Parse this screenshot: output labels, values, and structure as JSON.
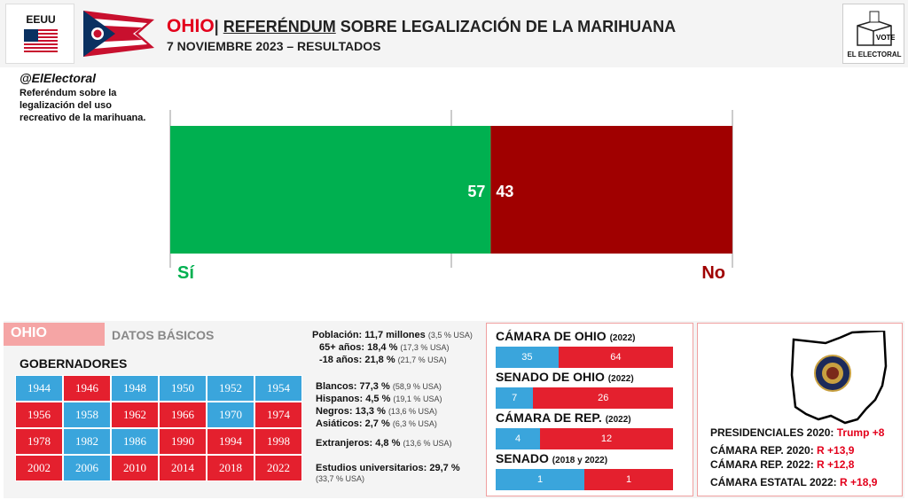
{
  "header": {
    "country_label": "EEUU",
    "title_state": "OHIO",
    "title_sep": "|",
    "title_ref": "REFERÉNDUM",
    "title_rest": "SOBRE LEGALIZACIÓN DE LA MARIHUANA",
    "subtitle": "7 NOVIEMBRE 2023 – RESULTADOS",
    "logo_label": "EL ELECTORAL",
    "ballot_text": "VOTE"
  },
  "intro": {
    "handle": "@ElElectoral",
    "description": "Referéndum sobre la legalización del uso recreativo de la marihuana."
  },
  "chart_data": {
    "type": "bar",
    "orientation": "horizontal-stacked",
    "categories": [
      "Sí",
      "No"
    ],
    "values": [
      57,
      43
    ],
    "labels": [
      "57",
      "43"
    ],
    "xlim": [
      0,
      100
    ],
    "colors": [
      "#00b050",
      "#a00000"
    ],
    "grid": true
  },
  "basics": {
    "tab_label": "OHIO",
    "section_label": "DATOS BÁSICOS",
    "governors_title": "GOBERNADORES",
    "governors": [
      {
        "year": "1944",
        "party": "D"
      },
      {
        "year": "1946",
        "party": "R"
      },
      {
        "year": "1948",
        "party": "D"
      },
      {
        "year": "1950",
        "party": "D"
      },
      {
        "year": "1952",
        "party": "D"
      },
      {
        "year": "1954",
        "party": "D"
      },
      {
        "year": "1956",
        "party": "R"
      },
      {
        "year": "1958",
        "party": "D"
      },
      {
        "year": "1962",
        "party": "R"
      },
      {
        "year": "1966",
        "party": "R"
      },
      {
        "year": "1970",
        "party": "D"
      },
      {
        "year": "1974",
        "party": "R"
      },
      {
        "year": "1978",
        "party": "R"
      },
      {
        "year": "1982",
        "party": "D"
      },
      {
        "year": "1986",
        "party": "D"
      },
      {
        "year": "1990",
        "party": "R"
      },
      {
        "year": "1994",
        "party": "R"
      },
      {
        "year": "1998",
        "party": "R"
      },
      {
        "year": "2002",
        "party": "R"
      },
      {
        "year": "2006",
        "party": "D"
      },
      {
        "year": "2010",
        "party": "R"
      },
      {
        "year": "2014",
        "party": "R"
      },
      {
        "year": "2018",
        "party": "R"
      },
      {
        "year": "2022",
        "party": "R"
      }
    ],
    "party_colors": {
      "D": "#3aa5dc",
      "R": "#e4202e"
    }
  },
  "stats": [
    {
      "label": "Población: 11,7 millones",
      "note": "(3,5 % USA)"
    },
    {
      "label": "65+ años: 18,4 %",
      "note": "(17,3 % USA)"
    },
    {
      "label": "-18 años: 21,8 %",
      "note": "(21,7 % USA)"
    },
    {
      "label": "Blancos: 77,3 %",
      "note": "(58,9 % USA)"
    },
    {
      "label": "Hispanos: 4,5 %",
      "note": "(19,1 % USA)"
    },
    {
      "label": "Negros: 13,3 %",
      "note": "(13,6 % USA)"
    },
    {
      "label": "Asiáticos: 2,7 %",
      "note": "(6,3 % USA)"
    },
    {
      "label": "Extranjeros: 4,8 %",
      "note": "(13,6 % USA)"
    },
    {
      "label": "Estudios universitarios: 29,7 %",
      "note": "(33,7 % USA)"
    }
  ],
  "chambers": [
    {
      "title": "CÁMARA DE OHIO",
      "year": "(2022)",
      "dem": 35,
      "rep": 64
    },
    {
      "title": "SENADO DE OHIO",
      "year": "(2022)",
      "dem": 7,
      "rep": 26
    },
    {
      "title": "CÁMARA DE REP.",
      "year": "(2022)",
      "dem": 4,
      "rep": 12
    },
    {
      "title": "SENADO",
      "year": "(2018 y 2022)",
      "dem": 1,
      "rep": 1
    }
  ],
  "results": [
    {
      "label": "PRESIDENCIALES 2020:",
      "value": "Trump +8"
    },
    {
      "label": "CÁMARA REP. 2020:",
      "value": "R +13,9"
    },
    {
      "label": "CÁMARA REP. 2022:",
      "value": "R +12,8"
    },
    {
      "label": "CÁMARA ESTATAL 2022:",
      "value": "R +18,9"
    }
  ]
}
